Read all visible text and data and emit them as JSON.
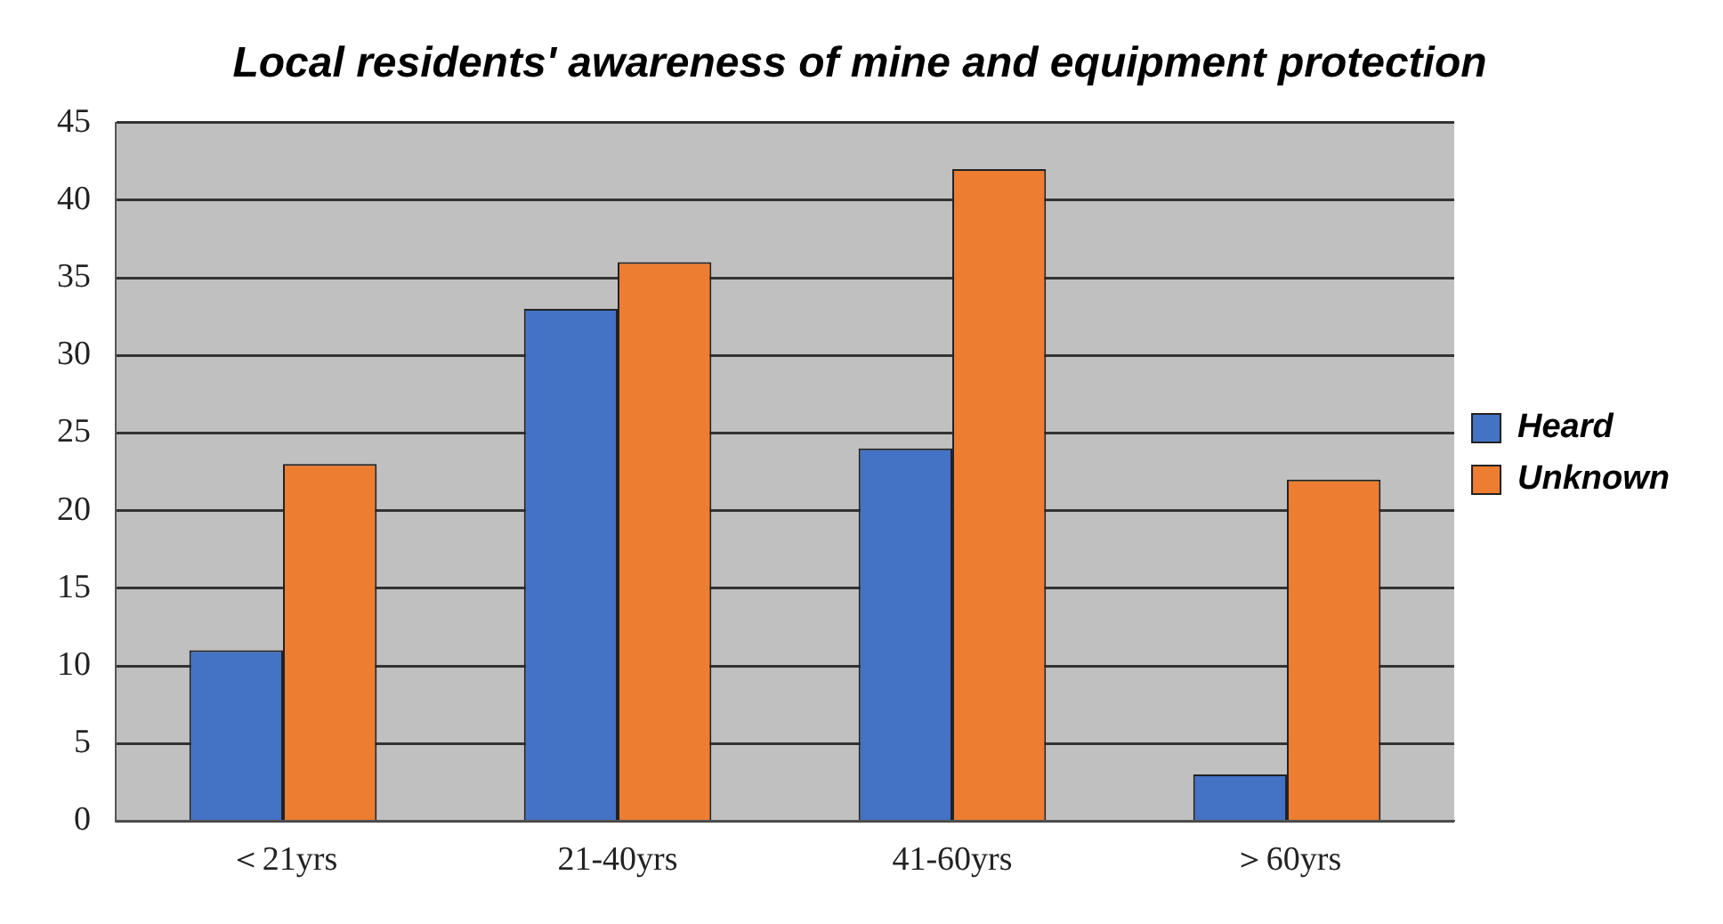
{
  "chart_data": {
    "type": "bar",
    "title": "Local residents' awareness of mine and equipment protection",
    "categories": [
      "＜21yrs",
      "21-40yrs",
      "41-60yrs",
      "＞60yrs"
    ],
    "series": [
      {
        "name": "Heard",
        "color": "#4472c4",
        "values": [
          11,
          33,
          24,
          3
        ]
      },
      {
        "name": "Unknown",
        "color": "#ed7d31",
        "values": [
          23,
          36,
          42,
          22
        ]
      }
    ],
    "ylim": [
      0,
      45
    ],
    "yticks": [
      0,
      5,
      10,
      15,
      20,
      25,
      30,
      35,
      40,
      45
    ],
    "grid": "y",
    "legend": "right"
  }
}
